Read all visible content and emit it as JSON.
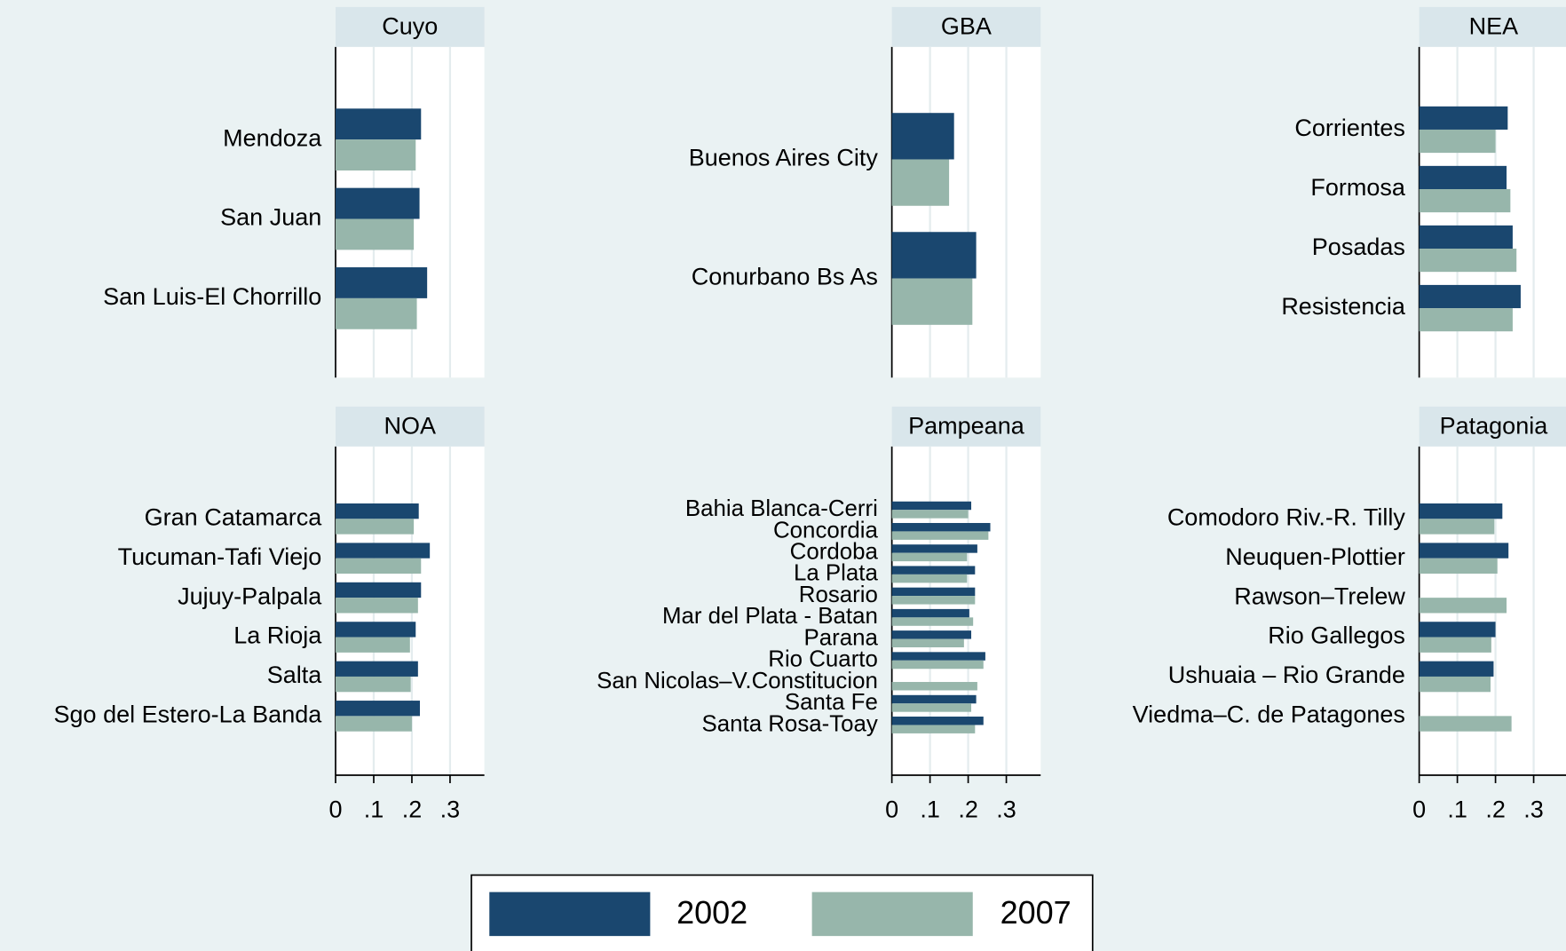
{
  "chart_data": [
    {
      "type": "hbar",
      "title": "Cuyo",
      "categories": [
        "Mendoza",
        "San Juan",
        "San Luis-El Chorrillo"
      ],
      "series": [
        {
          "name": "2002",
          "color": "#1a476f",
          "values": [
            0.224,
            0.22,
            0.24
          ]
        },
        {
          "name": "2007",
          "color": "#97b6ab",
          "values": [
            0.21,
            0.205,
            0.213
          ]
        }
      ],
      "xlim": [
        0,
        0.39
      ],
      "xticks": [
        0,
        0.1,
        0.2,
        0.3
      ],
      "grid": true
    },
    {
      "type": "hbar",
      "title": "GBA",
      "categories": [
        "Buenos Aires City",
        "Conurbano Bs As"
      ],
      "series": [
        {
          "name": "2002",
          "color": "#1a476f",
          "values": [
            0.163,
            0.221
          ]
        },
        {
          "name": "2007",
          "color": "#97b6ab",
          "values": [
            0.15,
            0.211
          ]
        }
      ],
      "xlim": [
        0,
        0.39
      ],
      "xticks": [
        0,
        0.1,
        0.2,
        0.3
      ],
      "grid": true
    },
    {
      "type": "hbar",
      "title": "NEA",
      "categories": [
        "Corrientes",
        "Formosa",
        "Posadas",
        "Resistencia"
      ],
      "series": [
        {
          "name": "2002",
          "color": "#1a476f",
          "values": [
            0.232,
            0.229,
            0.245,
            0.266
          ]
        },
        {
          "name": "2007",
          "color": "#97b6ab",
          "values": [
            0.2,
            0.239,
            0.255,
            0.245
          ]
        }
      ],
      "xlim": [
        0,
        0.39
      ],
      "xticks": [
        0,
        0.1,
        0.2,
        0.3
      ],
      "grid": true
    },
    {
      "type": "hbar",
      "title": "NOA",
      "categories": [
        "Gran Catamarca",
        "Tucuman-Tafi Viejo",
        "Jujuy-Palpala",
        "La Rioja",
        "Salta",
        "Sgo del Estero-La Banda"
      ],
      "series": [
        {
          "name": "2002",
          "color": "#1a476f",
          "values": [
            0.218,
            0.247,
            0.224,
            0.21,
            0.216,
            0.221
          ]
        },
        {
          "name": "2007",
          "color": "#97b6ab",
          "values": [
            0.205,
            0.224,
            0.216,
            0.195,
            0.197,
            0.2
          ]
        }
      ],
      "xlim": [
        0,
        0.39
      ],
      "xticks": [
        0,
        {
          "value": 0.1,
          "label": ".1"
        },
        {
          "value": 0.2,
          "label": ".2"
        },
        {
          "value": 0.3,
          "label": ".3"
        }
      ],
      "grid": true
    },
    {
      "type": "hbar",
      "title": "Pampeana",
      "categories": [
        "Bahia Blanca-Cerri",
        "Concordia",
        "Cordoba",
        "La Plata",
        "Rosario",
        "Mar del Plata - Batan",
        "Parana",
        "Rio Cuarto",
        "San Nicolas–V.Constitucion",
        "Santa Fe",
        "Santa Rosa-Toay"
      ],
      "series": [
        {
          "name": "2002",
          "color": "#1a476f",
          "values": [
            0.208,
            0.258,
            0.224,
            0.218,
            0.218,
            0.203,
            0.208,
            0.245,
            null,
            0.221,
            0.24
          ]
        },
        {
          "name": "2007",
          "color": "#97b6ab",
          "values": [
            0.2,
            0.253,
            0.197,
            0.197,
            0.218,
            0.213,
            0.189,
            0.24,
            0.224,
            0.208,
            0.218
          ]
        }
      ],
      "xlim": [
        0,
        0.39
      ],
      "xticks": [
        0,
        {
          "value": 0.1,
          "label": ".1"
        },
        {
          "value": 0.2,
          "label": ".2"
        },
        {
          "value": 0.3,
          "label": ".3"
        }
      ],
      "grid": true
    },
    {
      "type": "hbar",
      "title": "Patagonia",
      "categories": [
        "Comodoro Riv.-R. Tilly",
        "Neuquen-Plottier",
        "Rawson–Trelew",
        "Rio Gallegos",
        "Ushuaia – Rio Grande",
        "Viedma–C. de Patagones"
      ],
      "series": [
        {
          "name": "2002",
          "color": "#1a476f",
          "values": [
            0.218,
            0.234,
            null,
            0.2,
            0.195,
            null
          ]
        },
        {
          "name": "2007",
          "color": "#97b6ab",
          "values": [
            0.197,
            0.205,
            0.229,
            0.189,
            0.187,
            0.242
          ]
        }
      ],
      "xlim": [
        0,
        0.39
      ],
      "xticks": [
        0,
        {
          "value": 0.1,
          "label": ".1"
        },
        {
          "value": 0.2,
          "label": ".2"
        },
        {
          "value": 0.3,
          "label": ".3"
        }
      ],
      "grid": true
    }
  ]
}
